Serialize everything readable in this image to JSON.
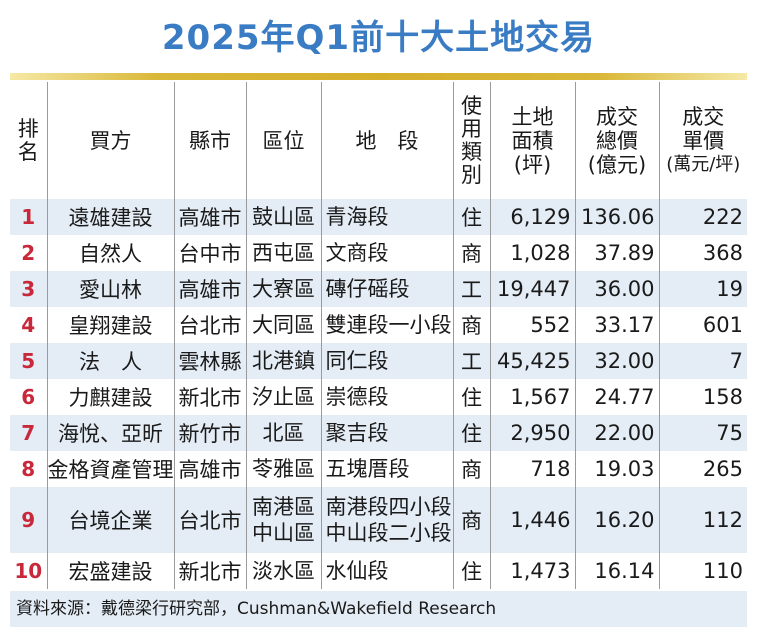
{
  "title": "2025年Q1前十大土地交易",
  "headers": {
    "rank": [
      "排",
      "名"
    ],
    "buyer": "買方",
    "city": "縣市",
    "district": "區位",
    "section": "地　段",
    "usage": [
      "使",
      "用",
      "類",
      "別"
    ],
    "area": [
      "土地",
      "面積",
      "(坪)"
    ],
    "total": [
      "成交",
      "總價",
      "(億元)"
    ],
    "unit": [
      "成交",
      "單價",
      "(萬元/坪)"
    ]
  },
  "rows": [
    {
      "rank": "1",
      "buyer": "遠雄建設",
      "city": "高雄市",
      "district": [
        "鼓山區"
      ],
      "section": [
        "青海段"
      ],
      "usage": "住",
      "area": "6,129",
      "total": "136.06",
      "unit": "222"
    },
    {
      "rank": "2",
      "buyer": "自然人",
      "city": "台中市",
      "district": [
        "西屯區"
      ],
      "section": [
        "文商段"
      ],
      "usage": "商",
      "area": "1,028",
      "total": "37.89",
      "unit": "368"
    },
    {
      "rank": "3",
      "buyer": "愛山林",
      "city": "高雄市",
      "district": [
        "大寮區"
      ],
      "section": [
        "磚仔磘段"
      ],
      "usage": "工",
      "area": "19,447",
      "total": "36.00",
      "unit": "19"
    },
    {
      "rank": "4",
      "buyer": "皇翔建設",
      "city": "台北市",
      "district": [
        "大同區"
      ],
      "section": [
        "雙連段一小段"
      ],
      "usage": "商",
      "area": "552",
      "total": "33.17",
      "unit": "601"
    },
    {
      "rank": "5",
      "buyer": "法　人",
      "city": "雲林縣",
      "district": [
        "北港鎮"
      ],
      "section": [
        "同仁段"
      ],
      "usage": "工",
      "area": "45,425",
      "total": "32.00",
      "unit": "7"
    },
    {
      "rank": "6",
      "buyer": "力麒建設",
      "city": "新北市",
      "district": [
        "汐止區"
      ],
      "section": [
        "崇德段"
      ],
      "usage": "住",
      "area": "1,567",
      "total": "24.77",
      "unit": "158"
    },
    {
      "rank": "7",
      "buyer": "海悅、亞昕",
      "city": "新竹市",
      "district": [
        "北區"
      ],
      "section": [
        "聚吉段"
      ],
      "usage": "住",
      "area": "2,950",
      "total": "22.00",
      "unit": "75"
    },
    {
      "rank": "8",
      "buyer": "金格資產管理",
      "city": "高雄市",
      "district": [
        "苓雅區"
      ],
      "section": [
        "五塊厝段"
      ],
      "usage": "商",
      "area": "718",
      "total": "19.03",
      "unit": "265"
    },
    {
      "rank": "9",
      "buyer": "台境企業",
      "city": "台北市",
      "district": [
        "南港區",
        "中山區"
      ],
      "section": [
        "南港段四小段",
        "中山段二小段"
      ],
      "usage": "商",
      "area": "1,446",
      "total": "16.20",
      "unit": "112"
    },
    {
      "rank": "10",
      "buyer": "宏盛建設",
      "city": "新北市",
      "district": [
        "淡水區"
      ],
      "section": [
        "水仙段"
      ],
      "usage": "住",
      "area": "1,473",
      "total": "16.14",
      "unit": "110"
    }
  ],
  "source": "資料來源：戴德梁行研究部，Cushman&Wakefield Research",
  "colors": {
    "title": "#3a7cc4",
    "rank": "#c8283a",
    "stripe": "#e4ecf5",
    "gold": "#d6af2a"
  }
}
